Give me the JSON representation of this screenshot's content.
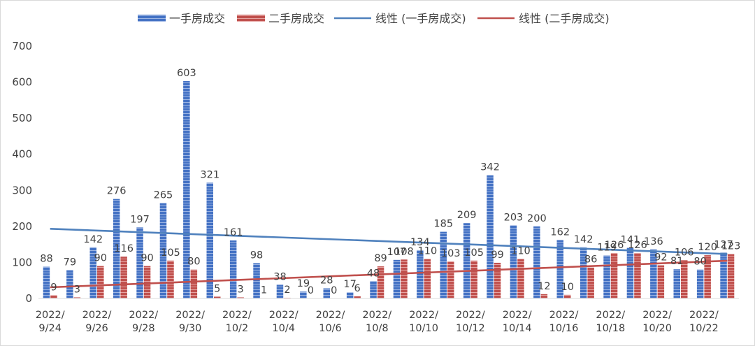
{
  "chart_data": {
    "type": "bar",
    "categories": [
      "2022/9/24",
      "2022/9/25",
      "2022/9/26",
      "2022/9/27",
      "2022/9/28",
      "2022/9/29",
      "2022/9/30",
      "2022/10/1",
      "2022/10/2",
      "2022/10/3",
      "2022/10/4",
      "2022/10/5",
      "2022/10/6",
      "2022/10/7",
      "2022/10/8",
      "2022/10/9",
      "2022/10/10",
      "2022/10/11",
      "2022/10/12",
      "2022/10/13",
      "2022/10/14",
      "2022/10/15",
      "2022/10/16",
      "2022/10/17",
      "2022/10/18",
      "2022/10/19",
      "2022/10/20",
      "2022/10/21",
      "2022/10/22",
      "2022/10/23"
    ],
    "x_tick_labels": [
      {
        "index": 0,
        "lines": [
          "2022/",
          "9/24"
        ]
      },
      {
        "index": 2,
        "lines": [
          "2022/",
          "9/26"
        ]
      },
      {
        "index": 4,
        "lines": [
          "2022/",
          "9/28"
        ]
      },
      {
        "index": 6,
        "lines": [
          "2022/",
          "9/30"
        ]
      },
      {
        "index": 8,
        "lines": [
          "2022/",
          "10/2"
        ]
      },
      {
        "index": 10,
        "lines": [
          "2022/",
          "10/4"
        ]
      },
      {
        "index": 12,
        "lines": [
          "2022/",
          "10/6"
        ]
      },
      {
        "index": 14,
        "lines": [
          "2022/",
          "10/8"
        ]
      },
      {
        "index": 16,
        "lines": [
          "2022/",
          "10/10"
        ]
      },
      {
        "index": 18,
        "lines": [
          "2022/",
          "10/12"
        ]
      },
      {
        "index": 20,
        "lines": [
          "2022/",
          "10/14"
        ]
      },
      {
        "index": 22,
        "lines": [
          "2022/",
          "10/16"
        ]
      },
      {
        "index": 24,
        "lines": [
          "2022/",
          "10/18"
        ]
      },
      {
        "index": 26,
        "lines": [
          "2022/",
          "10/20"
        ]
      },
      {
        "index": 28,
        "lines": [
          "2022/",
          "10/22"
        ]
      }
    ],
    "series": [
      {
        "name": "一手房成交",
        "color": "#4472c4",
        "values": [
          88,
          79,
          142,
          276,
          197,
          265,
          603,
          321,
          161,
          98,
          38,
          19,
          28,
          17,
          48,
          107,
          134,
          185,
          209,
          342,
          203,
          200,
          162,
          142,
          119,
          141,
          136,
          81,
          80,
          127
        ]
      },
      {
        "name": "二手房成交",
        "color": "#c0504d",
        "values": [
          9,
          3,
          90,
          116,
          90,
          105,
          80,
          5,
          3,
          1,
          2,
          0,
          0,
          6,
          89,
          108,
          110,
          103,
          105,
          99,
          110,
          12,
          10,
          86,
          126,
          126,
          92,
          106,
          120,
          123
        ]
      }
    ],
    "trendlines": [
      {
        "name": "线性 (一手房成交)",
        "series": "一手房成交",
        "type": "linear",
        "color": "#4f81bd"
      },
      {
        "name": "线性 (二手房成交)",
        "series": "二手房成交",
        "type": "linear",
        "color": "#c0504d"
      }
    ],
    "y_ticks": [
      "0",
      "100",
      "200",
      "300",
      "400",
      "500",
      "600",
      "700"
    ],
    "ylim": [
      0,
      700
    ],
    "title": "",
    "xlabel": "",
    "ylabel": "",
    "legend_position": "top",
    "grid": false
  }
}
